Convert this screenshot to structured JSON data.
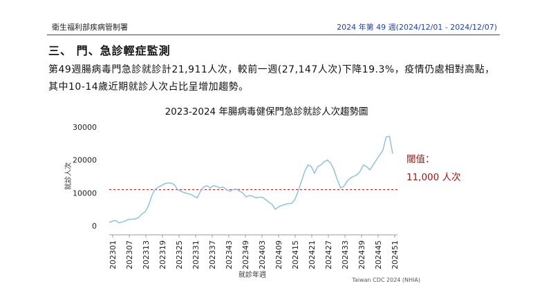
{
  "header": {
    "agency": "衛生福利部疾病管制署",
    "week_info": "2024 年第 49 週(2024/12/01 - 2024/12/07)"
  },
  "section": {
    "title": "三、  門、急診輕症監測",
    "paragraph": "第49週腸病毒門急診就診計21,911人次，較前一週(27,147人次)下降19.3%，疫情仍處相對高點，其中10-14歲近期就診人次占比呈增加趨勢。"
  },
  "threshold_label_line1": "閾值：",
  "threshold_label_line2": "11,000 人次",
  "source": "Taiwan CDC 2024 (NHIA)",
  "colors": {
    "line": "#8fc1dc",
    "threshold": "#a52a2a",
    "header_right": "#1f3fa8"
  },
  "chart_data": {
    "type": "line",
    "title": "2023-2024 年腸病毒健保門急診就診人次趨勢圖",
    "xlabel": "就診年週",
    "ylabel": "就診人次",
    "ylim": [
      0,
      30000
    ],
    "yticks": [
      0,
      10000,
      20000,
      30000
    ],
    "ytick_labels": [
      "0",
      "10000",
      "20000",
      "30000"
    ],
    "x_tick_labels": [
      "202301",
      "202307",
      "202313",
      "202319",
      "202325",
      "202331",
      "202337",
      "202343",
      "202349",
      "202403",
      "202409",
      "202415",
      "202421",
      "202427",
      "202433",
      "202439",
      "202445",
      "202451"
    ],
    "threshold": 11000,
    "series": [
      {
        "name": "就診人次",
        "values": [
          1000,
          1500,
          1600,
          900,
          1200,
          1500,
          2000,
          2000,
          2100,
          2500,
          3600,
          4200,
          6000,
          9000,
          11000,
          11700,
          12200,
          12800,
          13000,
          13000,
          12500,
          11000,
          10500,
          10100,
          9800,
          9600,
          9000,
          8500,
          10500,
          11800,
          12200,
          11500,
          12200,
          12000,
          11500,
          11800,
          11000,
          10500,
          11000,
          11200,
          10500,
          10000,
          8800,
          9200,
          9000,
          8500,
          8700,
          8700,
          8000,
          7200,
          6500,
          5000,
          5800,
          6200,
          6500,
          6800,
          6800,
          8000,
          10500,
          13500,
          16500,
          18500,
          18000,
          16000,
          18000,
          18500,
          19500,
          20000,
          19000,
          17000,
          14000,
          11500,
          12000,
          13500,
          14500,
          15000,
          15500,
          16500,
          18500,
          18000,
          17000,
          18500,
          20000,
          21500,
          23000,
          27000,
          27200,
          21900
        ]
      }
    ]
  }
}
